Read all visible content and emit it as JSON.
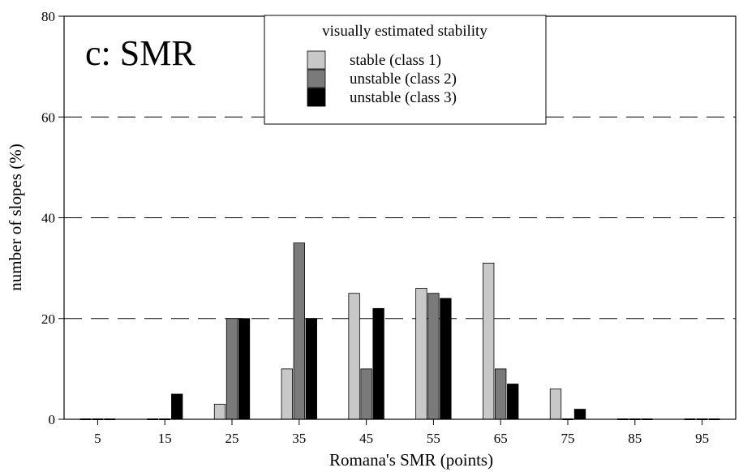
{
  "chart_data": {
    "type": "bar",
    "panel_label": "c: SMR",
    "xlabel": "Romana's SMR (points)",
    "ylabel": "number of slopes (%)",
    "categories": [
      "5",
      "15",
      "25",
      "35",
      "45",
      "55",
      "65",
      "75",
      "85",
      "95"
    ],
    "ylim": [
      0,
      80
    ],
    "yticks": [
      0,
      20,
      40,
      60,
      80
    ],
    "grid": "horizontal dashed at 20, 40, 60",
    "legend": {
      "title": "visually estimated stability",
      "placement": "top-center"
    },
    "series": [
      {
        "name": "stable (class 1)",
        "color": "#c8c8c8",
        "values": [
          0,
          0,
          3,
          10,
          25,
          26,
          31,
          6,
          0,
          0
        ]
      },
      {
        "name": "unstable (class 2)",
        "color": "#7a7a7a",
        "values": [
          0,
          0,
          20,
          35,
          10,
          25,
          10,
          0,
          0,
          0
        ]
      },
      {
        "name": "unstable (class 3)",
        "color": "#000000",
        "values": [
          0,
          5,
          20,
          20,
          22,
          24,
          7,
          2,
          0,
          0
        ]
      }
    ]
  }
}
